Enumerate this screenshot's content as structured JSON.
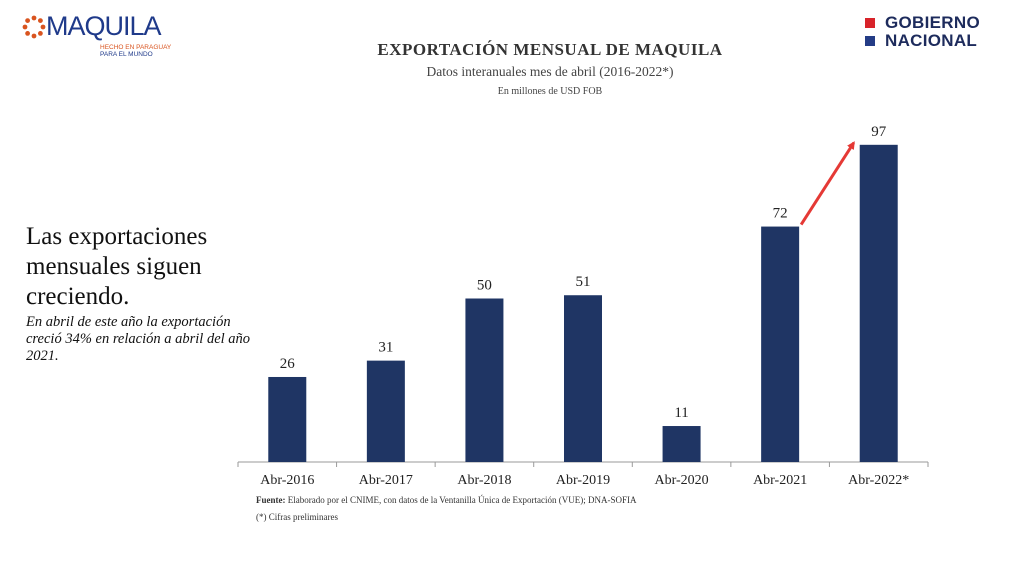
{
  "logos": {
    "maquila": {
      "name": "MAQUILA",
      "tagline_1": "HECHO EN PARAGUAY",
      "tagline_2": "PARA EL MUNDO",
      "brand_blue": "#1f3a8a",
      "brand_orange": "#d9541f"
    },
    "gobierno": {
      "line_1": "GOBIERNO",
      "line_2": "NACIONAL",
      "red": "#d8232a",
      "blue": "#243c86"
    }
  },
  "side_text": {
    "headline": "Las exportaciones mensuales siguen creciendo.",
    "note": "En abril de este año la exportación creció 34%  en relación a abril del año 2021."
  },
  "chart_data": {
    "type": "bar",
    "title": "EXPORTACIÓN MENSUAL DE MAQUILA",
    "subtitle": "Datos interanuales mes de abril (2016-2022*)",
    "units": "En millones de USD FOB",
    "categories": [
      "Abr-2016",
      "Abr-2017",
      "Abr-2018",
      "Abr-2019",
      "Abr-2020",
      "Abr-2021",
      "Abr-2022*"
    ],
    "values": [
      26,
      31,
      50,
      51,
      11,
      72,
      97
    ],
    "data_labels": [
      "26",
      "31",
      "50",
      "51",
      "11",
      "72",
      "97"
    ],
    "bar_color": "#1f3564",
    "arrow_color": "#e53935",
    "highlight": {
      "from": "Abr-2021",
      "to": "Abr-2022*"
    },
    "ylim": [
      0,
      100
    ],
    "grid": false,
    "legend": "none"
  },
  "source": {
    "label": "Fuente:",
    "text": " Elaborado por el CNIME, con datos de la Ventanilla Única de Exportación (VUE); DNA-SOFIA",
    "footnote": "(*) Cifras preliminares"
  }
}
